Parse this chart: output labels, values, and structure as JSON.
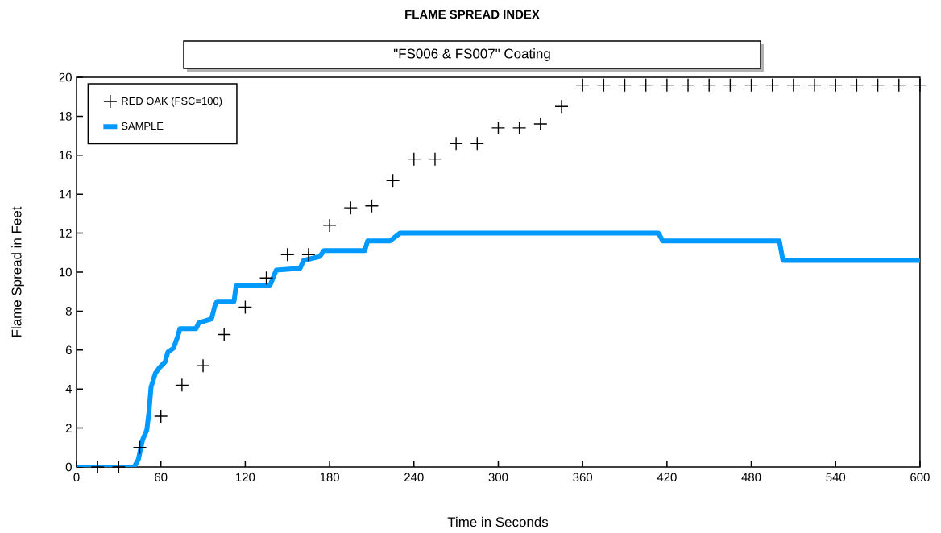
{
  "chart_data": {
    "type": "line",
    "title": "FLAME SPREAD INDEX",
    "subtitle": "\"FS006 & FS007\" Coating",
    "xlabel": "Time in Seconds",
    "ylabel": "Flame Spread in Feet",
    "xlim": [
      0,
      600
    ],
    "xticks": [
      0,
      60,
      120,
      180,
      240,
      300,
      360,
      420,
      480,
      540,
      600
    ],
    "ylim": [
      0,
      20
    ],
    "yticks": [
      0,
      2,
      4,
      6,
      8,
      10,
      12,
      14,
      16,
      18,
      20
    ],
    "grid": false,
    "legend": "top left",
    "series": [
      {
        "name": "RED OAK (FSC=100)",
        "type": "scatter",
        "marker": "cross",
        "color": "#000000",
        "x": [
          15,
          30,
          45,
          60,
          75,
          90,
          105,
          120,
          135,
          150,
          165,
          180,
          195,
          210,
          225,
          240,
          255,
          270,
          285,
          300,
          315,
          330,
          345,
          360,
          375,
          390,
          405,
          420,
          435,
          450,
          465,
          480,
          495,
          510,
          525,
          540,
          555,
          570,
          585,
          600
        ],
        "values": [
          0,
          0,
          1.0,
          2.6,
          4.2,
          5.2,
          6.8,
          8.2,
          9.7,
          10.9,
          10.9,
          12.4,
          13.3,
          13.4,
          14.7,
          15.8,
          15.8,
          16.6,
          16.6,
          17.4,
          17.4,
          17.6,
          18.5,
          19.6,
          19.6,
          19.6,
          19.6,
          19.6,
          19.6,
          19.6,
          19.6,
          19.6,
          19.6,
          19.6,
          19.6,
          19.6,
          19.6,
          19.6,
          19.6,
          19.6
        ]
      },
      {
        "name": "SAMPLE",
        "line_style": "solid",
        "color": "#0099ff",
        "x": [
          0,
          41,
          44,
          47,
          50,
          51.5,
          53,
          56,
          59,
          63,
          65,
          69,
          72,
          73.5,
          85,
          87,
          96,
          98.5,
          100,
          112,
          113.5,
          137.5,
          142,
          159,
          161.5,
          173,
          176,
          205,
          207,
          223,
          230,
          414,
          417,
          500,
          502.5,
          600
        ],
        "values": [
          0,
          0,
          0.4,
          1.4,
          1.9,
          2.8,
          4.1,
          4.8,
          5.1,
          5.4,
          5.9,
          6.1,
          6.7,
          7.1,
          7.1,
          7.4,
          7.6,
          8.3,
          8.5,
          8.5,
          9.3,
          9.3,
          10.1,
          10.2,
          10.6,
          10.8,
          11.1,
          11.1,
          11.6,
          11.6,
          12.0,
          12.0,
          11.6,
          11.6,
          10.6,
          10.6
        ]
      }
    ]
  }
}
